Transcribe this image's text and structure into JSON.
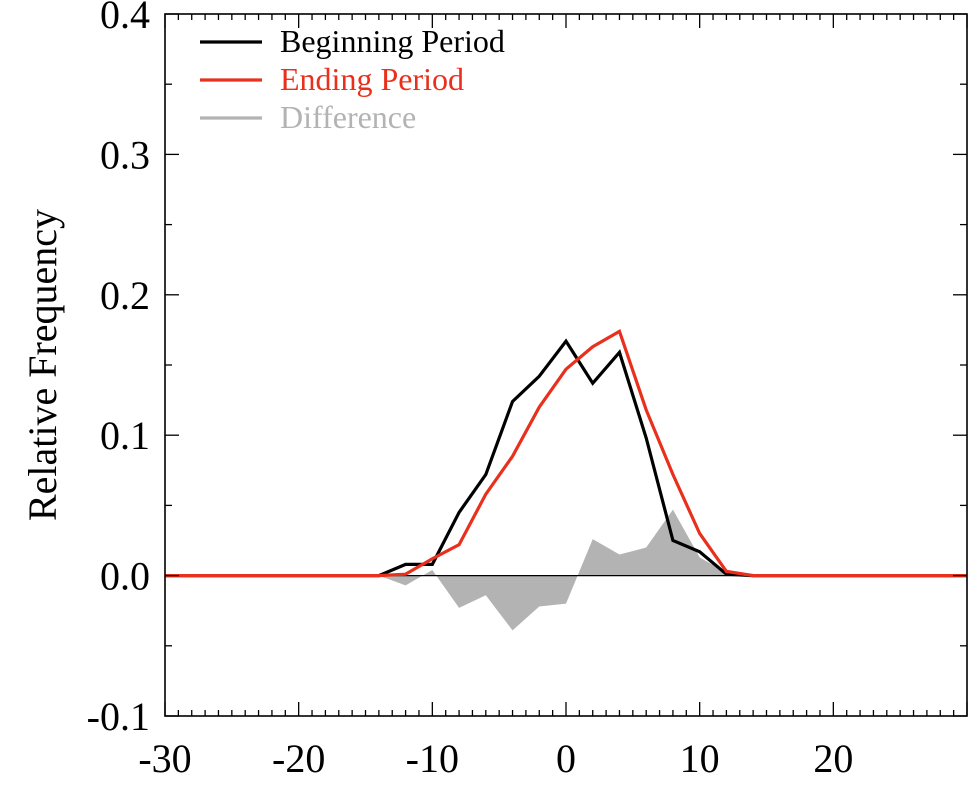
{
  "chart_data": {
    "type": "line",
    "title": "",
    "xlabel": "",
    "ylabel": "Relative Frequency",
    "xlim": [
      -30,
      30
    ],
    "ylim": [
      -0.1,
      0.4
    ],
    "x_ticks": [
      -30,
      -20,
      -10,
      0,
      10,
      20
    ],
    "x_tick_labels": [
      "-30",
      "-20",
      "-10",
      "0",
      "10",
      "20"
    ],
    "y_ticks": [
      -0.1,
      0.0,
      0.1,
      0.2,
      0.3,
      0.4
    ],
    "y_tick_labels": [
      "-0.1",
      "0.0",
      "0.1",
      "0.2",
      "0.3",
      "0.4"
    ],
    "grid": false,
    "legend_position": "top-left",
    "x": [
      -30,
      -14,
      -12,
      -10,
      -8,
      -6,
      -4,
      -2,
      0,
      2,
      4,
      6,
      8,
      10,
      12,
      14,
      30
    ],
    "series": [
      {
        "name": "Beginning Period",
        "color": "#000000",
        "style": "line",
        "values": [
          0,
          0,
          0.008,
          0.008,
          0.045,
          0.072,
          0.124,
          0.142,
          0.167,
          0.137,
          0.159,
          0.098,
          0.025,
          0.017,
          0.001,
          0,
          0
        ]
      },
      {
        "name": "Ending Period",
        "color": "#e8301c",
        "style": "line",
        "values": [
          0,
          0,
          0.001,
          0.012,
          0.022,
          0.058,
          0.085,
          0.12,
          0.147,
          0.163,
          0.174,
          0.118,
          0.072,
          0.03,
          0.003,
          0,
          0
        ]
      },
      {
        "name": "Difference",
        "color": "#b3b3b3",
        "style": "area",
        "values": [
          0,
          0,
          -0.007,
          0.004,
          -0.023,
          -0.014,
          -0.039,
          -0.022,
          -0.02,
          0.026,
          0.015,
          0.02,
          0.047,
          0.013,
          0.002,
          0,
          0
        ]
      }
    ]
  }
}
